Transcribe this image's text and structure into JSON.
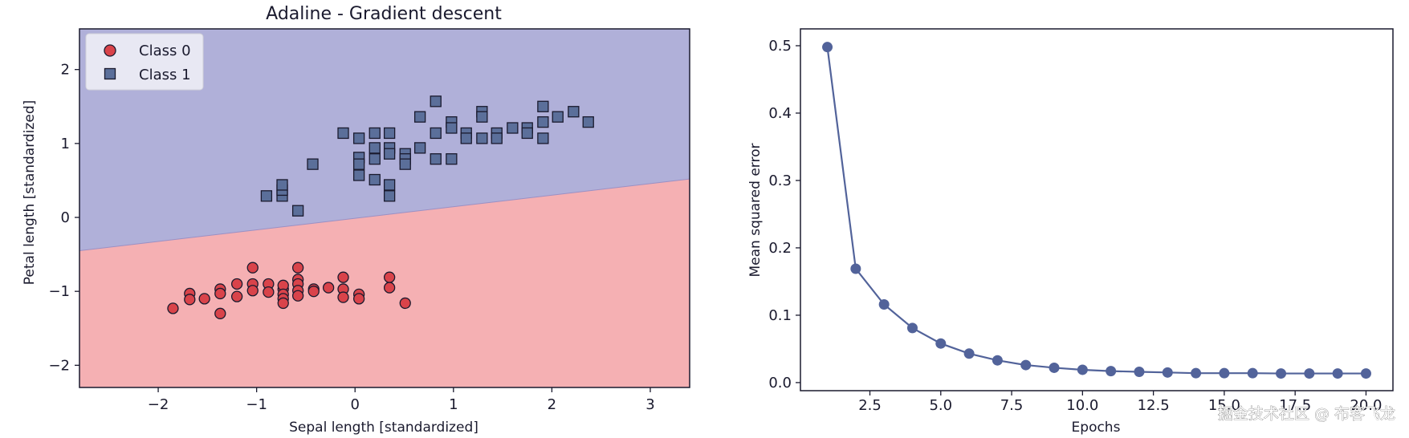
{
  "watermark": "掘金技术社区 @ 布客飞龙",
  "colors": {
    "class0_fill": "#d9434a",
    "class1_fill": "#5b6f9a",
    "region0": "#f5b0b3",
    "region1": "#b0b0d9",
    "line": "#52639a",
    "marker_edge": "#1a1a2e"
  },
  "chart_data": [
    {
      "type": "scatter",
      "title": "Adaline - Gradient descent",
      "xlabel": "Sepal length [standardized]",
      "ylabel": "Petal length [standardized]",
      "xlim": [
        -2.8,
        3.4
      ],
      "ylim": [
        -2.3,
        2.55
      ],
      "xticks": [
        -2,
        -1,
        0,
        1,
        2,
        3
      ],
      "xtick_labels": [
        "−2",
        "−1",
        "0",
        "1",
        "2",
        "3"
      ],
      "yticks": [
        -2,
        -1,
        0,
        1,
        2
      ],
      "ytick_labels": [
        "−2",
        "−1",
        "0",
        "1",
        "2"
      ],
      "decision_boundary": {
        "x": [
          -2.8,
          3.4
        ],
        "y": [
          -0.45,
          0.52
        ]
      },
      "regions": [
        {
          "name": "Class 0 region",
          "side": "below",
          "color": "#f5b0b3"
        },
        {
          "name": "Class 1 region",
          "side": "above",
          "color": "#b0b0d9"
        }
      ],
      "legend": {
        "position": "top-left",
        "entries": [
          {
            "label": "Class 0",
            "marker": "circle",
            "color": "#d9434a"
          },
          {
            "label": "Class 1",
            "marker": "square",
            "color": "#5b6f9a"
          }
        ]
      },
      "series": [
        {
          "name": "Class 0",
          "marker": "circle",
          "color": "#d9434a",
          "points": [
            [
              -1.85,
              -1.23
            ],
            [
              -1.68,
              -1.03
            ],
            [
              -1.68,
              -1.11
            ],
            [
              -1.53,
              -1.1
            ],
            [
              -1.37,
              -1.3
            ],
            [
              -1.37,
              -0.97
            ],
            [
              -1.37,
              -1.03
            ],
            [
              -1.2,
              -0.9
            ],
            [
              -1.2,
              -1.07
            ],
            [
              -1.04,
              -0.68
            ],
            [
              -1.04,
              -0.9
            ],
            [
              -1.04,
              -0.99
            ],
            [
              -0.88,
              -0.9
            ],
            [
              -0.88,
              -1.01
            ],
            [
              -0.73,
              -0.97
            ],
            [
              -0.73,
              -0.92
            ],
            [
              -0.73,
              -1.04
            ],
            [
              -0.73,
              -1.1
            ],
            [
              -0.73,
              -1.16
            ],
            [
              -0.58,
              -0.68
            ],
            [
              -0.58,
              -0.84
            ],
            [
              -0.58,
              -0.9
            ],
            [
              -0.58,
              -0.99
            ],
            [
              -0.58,
              -1.06
            ],
            [
              -0.42,
              -0.97
            ],
            [
              -0.42,
              -1.0
            ],
            [
              -0.27,
              -0.95
            ],
            [
              -0.12,
              -0.81
            ],
            [
              -0.12,
              -0.97
            ],
            [
              -0.12,
              -1.08
            ],
            [
              0.04,
              -1.04
            ],
            [
              0.04,
              -1.1
            ],
            [
              0.35,
              -0.81
            ],
            [
              0.35,
              -0.95
            ],
            [
              0.51,
              -1.16
            ]
          ]
        },
        {
          "name": "Class 1",
          "marker": "square",
          "color": "#5b6f9a",
          "points": [
            [
              -0.9,
              0.29
            ],
            [
              -0.74,
              0.29
            ],
            [
              -0.74,
              0.37
            ],
            [
              -0.74,
              0.44
            ],
            [
              -0.58,
              0.09
            ],
            [
              -0.43,
              0.72
            ],
            [
              -0.12,
              1.14
            ],
            [
              0.04,
              1.07
            ],
            [
              0.04,
              0.81
            ],
            [
              0.04,
              0.72
            ],
            [
              0.04,
              0.57
            ],
            [
              0.2,
              1.14
            ],
            [
              0.2,
              0.94
            ],
            [
              0.2,
              0.79
            ],
            [
              0.2,
              0.51
            ],
            [
              0.35,
              1.14
            ],
            [
              0.35,
              0.94
            ],
            [
              0.35,
              0.86
            ],
            [
              0.35,
              0.44
            ],
            [
              0.35,
              0.29
            ],
            [
              0.51,
              0.86
            ],
            [
              0.51,
              0.79
            ],
            [
              0.51,
              0.72
            ],
            [
              0.66,
              1.36
            ],
            [
              0.66,
              0.94
            ],
            [
              0.82,
              1.57
            ],
            [
              0.82,
              1.14
            ],
            [
              0.82,
              0.79
            ],
            [
              0.98,
              1.29
            ],
            [
              0.98,
              1.21
            ],
            [
              0.98,
              0.79
            ],
            [
              1.13,
              1.14
            ],
            [
              1.13,
              1.07
            ],
            [
              1.29,
              1.43
            ],
            [
              1.29,
              1.36
            ],
            [
              1.29,
              1.07
            ],
            [
              1.44,
              1.14
            ],
            [
              1.44,
              1.07
            ],
            [
              1.6,
              1.21
            ],
            [
              1.75,
              1.21
            ],
            [
              1.75,
              1.14
            ],
            [
              1.91,
              1.29
            ],
            [
              1.91,
              1.07
            ],
            [
              1.91,
              1.5
            ],
            [
              2.06,
              1.36
            ],
            [
              2.22,
              1.43
            ],
            [
              2.37,
              1.29
            ]
          ]
        }
      ]
    },
    {
      "type": "line",
      "title": "",
      "xlabel": "Epochs",
      "ylabel": "Mean squared error",
      "xlim": [
        0.05,
        20.95
      ],
      "ylim": [
        -0.012,
        0.525
      ],
      "xticks": [
        2.5,
        5.0,
        7.5,
        10.0,
        12.5,
        15.0,
        17.5,
        20.0
      ],
      "xtick_labels": [
        "2.5",
        "5.0",
        "7.5",
        "10.0",
        "12.5",
        "15.0",
        "17.5",
        "20.0"
      ],
      "yticks": [
        0.0,
        0.1,
        0.2,
        0.3,
        0.4,
        0.5
      ],
      "ytick_labels": [
        "0.0",
        "0.1",
        "0.2",
        "0.3",
        "0.4",
        "0.5"
      ],
      "x": [
        1,
        2,
        3,
        4,
        5,
        6,
        7,
        8,
        9,
        10,
        11,
        12,
        13,
        14,
        15,
        16,
        17,
        18,
        19,
        20
      ],
      "series": [
        {
          "name": "Mean squared error",
          "marker": "circle",
          "color": "#52639a",
          "values": [
            0.498,
            0.169,
            0.116,
            0.081,
            0.058,
            0.043,
            0.033,
            0.026,
            0.022,
            0.019,
            0.017,
            0.016,
            0.015,
            0.014,
            0.014,
            0.014,
            0.0135,
            0.0135,
            0.0135,
            0.0135
          ]
        }
      ]
    }
  ]
}
